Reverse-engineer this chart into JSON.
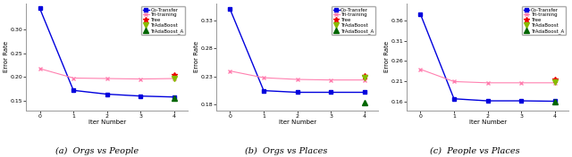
{
  "subplots": [
    {
      "title": "(a)  Orgs vs People",
      "xlabel": "Iter Number",
      "ylabel": "Error Rate",
      "ylim": [
        0.13,
        0.355
      ],
      "yticks": [
        0.15,
        0.2,
        0.25,
        0.3
      ],
      "ytick_labels": [
        "0.15 -",
        "0.20 -",
        "0.25",
        "0.30 -"
      ],
      "co_transfer": [
        0.345,
        0.172,
        0.164,
        0.16,
        0.158
      ],
      "tri_training": [
        0.218,
        0.198,
        0.197,
        0.196,
        0.197
      ],
      "tree": [
        0.205
      ],
      "tradaboost": [
        0.197
      ],
      "tradaboost_a": [
        0.155
      ]
    },
    {
      "title": "(b)  Orgs vs Places",
      "xlabel": "Iter Number",
      "ylabel": "Error Rate",
      "ylim": [
        0.17,
        0.36
      ],
      "yticks": [
        0.18,
        0.23,
        0.28,
        0.33
      ],
      "ytick_labels": [
        "0.18 -",
        "0.23",
        "0.28",
        "0.33"
      ],
      "co_transfer": [
        0.35,
        0.205,
        0.202,
        0.202,
        0.202
      ],
      "tri_training": [
        0.24,
        0.228,
        0.225,
        0.224,
        0.224
      ],
      "tree": [
        0.232
      ],
      "tradaboost": [
        0.228
      ],
      "tradaboost_a": [
        0.183
      ]
    },
    {
      "title": "(c)  People vs Places",
      "xlabel": "Iter Number",
      "ylabel": "Error Rate",
      "ylim": [
        0.14,
        0.4
      ],
      "yticks": [
        0.16,
        0.21,
        0.26,
        0.31,
        0.36
      ],
      "ytick_labels": [
        "0.16",
        "0.21",
        "0.26",
        "0.31",
        "0.36"
      ],
      "co_transfer": [
        0.375,
        0.168,
        0.163,
        0.163,
        0.162
      ],
      "tri_training": [
        0.24,
        0.21,
        0.207,
        0.207,
        0.207
      ],
      "tree": [
        0.215
      ],
      "tradaboost": [
        0.208
      ],
      "tradaboost_a": [
        0.161
      ]
    }
  ],
  "legend_labels": [
    "Co-Transfer",
    "Tri-training",
    "Tree",
    "TrAdaBoost",
    "TrAdaBoost_A"
  ],
  "co_transfer_color": "#0000dd",
  "tri_training_color": "#ff80b0",
  "tree_color": "#ee0000",
  "tradaboost_color": "#88bb00",
  "tradaboost_a_color": "#006600",
  "x_iter": [
    0,
    1,
    2,
    3,
    4
  ]
}
